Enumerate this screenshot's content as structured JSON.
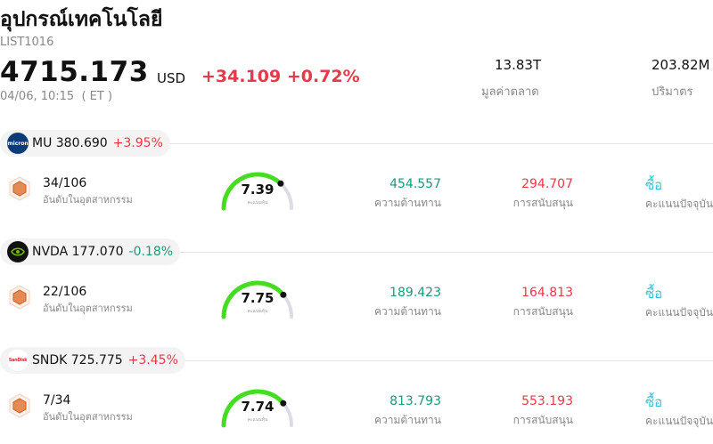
{
  "header": {
    "title": "อุปกรณ์เทคโนโลยี",
    "code": "LIST1016",
    "price": "4715.173",
    "currency": "USD",
    "change": "+34.109 +0.72%",
    "time": "04/06, 10:15  ( ET )",
    "stats": [
      {
        "value": "13.83T",
        "label": "มูลค่าตลาด"
      },
      {
        "value": "203.82M",
        "label": "ปริมาตร"
      }
    ]
  },
  "colors": {
    "up": "#e8394a",
    "down": "#1a9a7a",
    "gauge_green": "#44dd22",
    "gauge_track": "#dcdce6",
    "action": "#3cc0d0"
  },
  "stocks": [
    {
      "ticker_price": "MU 380.690",
      "change": "+3.95%",
      "direction": "up",
      "logo": "micron-logo",
      "rank": "34/106",
      "rank_label": "อันดับในอุตสาหกรรม",
      "score": "7.39",
      "score_value": 7.39,
      "score_label": "คะแนนหุ้น",
      "resistance": "454.557",
      "resistance_label": "ความต้านทาน",
      "support": "294.707",
      "support_label": "การสนับสนุน",
      "action": "ซื้อ",
      "action_label": "คะแนนปัจจุบัน"
    },
    {
      "ticker_price": "NVDA 177.070",
      "change": "-0.18%",
      "direction": "down",
      "logo": "nvidia-logo",
      "rank": "22/106",
      "rank_label": "อันดับในอุตสาหกรรม",
      "score": "7.75",
      "score_value": 7.75,
      "score_label": "คะแนนหุ้น",
      "resistance": "189.423",
      "resistance_label": "ความต้านทาน",
      "support": "164.813",
      "support_label": "การสนับสนุน",
      "action": "ซื้อ",
      "action_label": "คะแนนปัจจุบัน"
    },
    {
      "ticker_price": "SNDK 725.775",
      "change": "+3.45%",
      "direction": "up",
      "logo": "sandisk-logo",
      "rank": "7/34",
      "rank_label": "อันดับในอุตสาหกรรม",
      "score": "7.74",
      "score_value": 7.74,
      "score_label": "คะแนนหุ้น",
      "resistance": "813.793",
      "resistance_label": "ความต้านทาน",
      "support": "553.193",
      "support_label": "การสนับสนุน",
      "action": "ซื้อ",
      "action_label": "คะแนนปัจจุบัน"
    }
  ]
}
